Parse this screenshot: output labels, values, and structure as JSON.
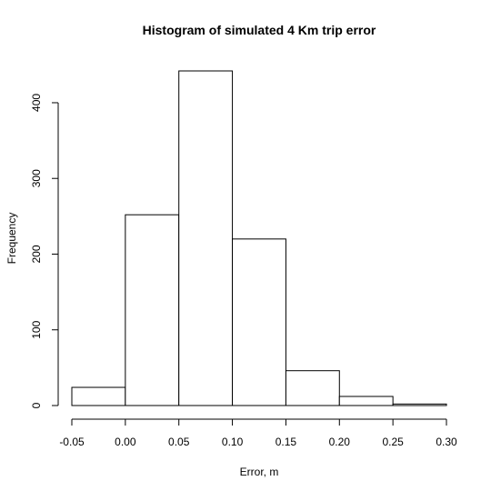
{
  "chart_data": {
    "type": "bar",
    "title": "Histogram of simulated 4 Km trip error",
    "xlabel": "Error, m",
    "ylabel": "Frequency",
    "bins": [
      {
        "from": -0.05,
        "to": 0.0,
        "count": 24
      },
      {
        "from": 0.0,
        "to": 0.05,
        "count": 252
      },
      {
        "from": 0.05,
        "to": 0.1,
        "count": 442
      },
      {
        "from": 0.1,
        "to": 0.15,
        "count": 220
      },
      {
        "from": 0.15,
        "to": 0.2,
        "count": 46
      },
      {
        "from": 0.2,
        "to": 0.25,
        "count": 12
      },
      {
        "from": 0.25,
        "to": 0.3,
        "count": 2
      }
    ],
    "xlim": [
      -0.05,
      0.3
    ],
    "ylim": [
      0,
      442
    ],
    "xticks": [
      "-0.05",
      "0.00",
      "0.05",
      "0.10",
      "0.15",
      "0.20",
      "0.25",
      "0.30"
    ],
    "yticks": [
      "0",
      "100",
      "200",
      "300",
      "400"
    ],
    "grid": false,
    "legend": "none"
  }
}
